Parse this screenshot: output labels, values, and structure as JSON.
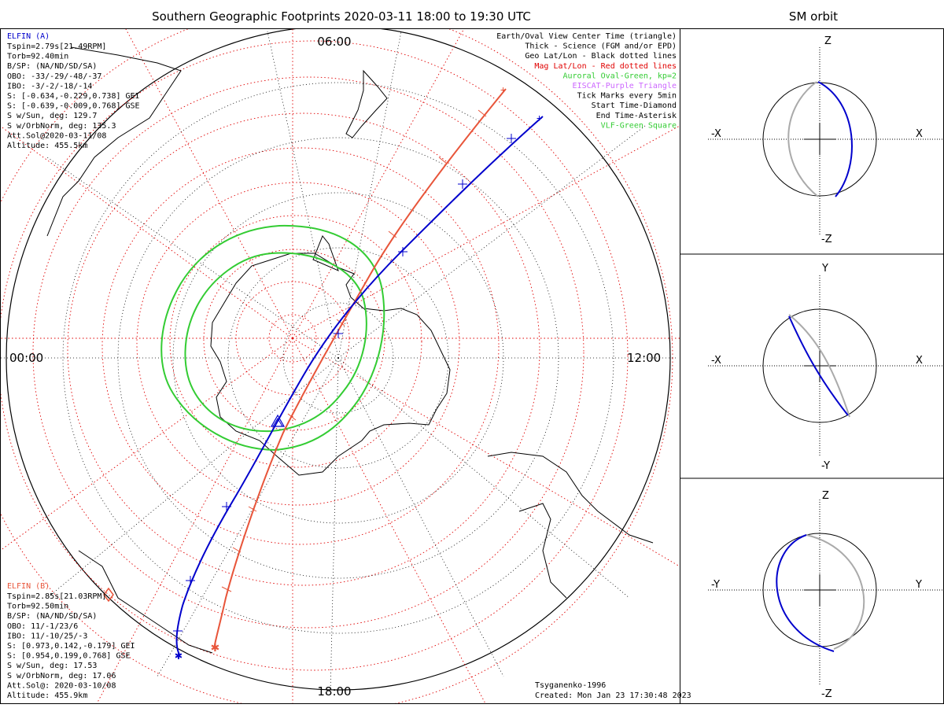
{
  "header": {
    "title": "Southern Geographic Footprints 2020-03-11 18:00 to 19:30 UTC",
    "orbit_title": "SM orbit"
  },
  "hours": {
    "top": "06:00",
    "left": "00:00",
    "right": "12:00",
    "bottom": "18:00"
  },
  "elfin_a": {
    "name": "ELFIN (A)",
    "color": "#0000cc",
    "lines": [
      "Tspin=2.79s[21.49RPM]",
      "Torb=92.40min",
      "B/SP: (NA/ND/SD/SA)",
      "OBO: -33/-29/-48/-37",
      "IBO: -3/-2/-18/-14",
      "S: [-0.634,-0.229,0.738] GEI",
      "S: [-0.639,-0.009,0.768] GSE",
      "S w/Sun, deg: 129.7",
      "S w/OrbNorm, deg: 135.3",
      "Att.Sol@2020-03-11/08",
      "Altitude: 455.5km"
    ]
  },
  "elfin_b": {
    "name": "ELFIN (B)",
    "color": "#e8553a",
    "lines": [
      "Tspin=2.85s[21.03RPM]",
      "Torb=92.50min",
      "B/SP: (NA/ND/SD/SA)",
      "OBO: 11/-1/23/6",
      "IBO: 11/-10/25/-3",
      "S: [0.973,0.142,-0.179] GEI",
      "S: [0.954,0.199,0.768] GSE",
      "S w/Sun, deg: 17.53",
      "S w/OrbNorm, deg: 17.06",
      "Att.Sol@: 2020-03-10/08",
      "Altitude: 455.9km"
    ]
  },
  "legend": [
    {
      "text": "Earth/Oval View Center Time (triangle)",
      "color": "#000000"
    },
    {
      "text": "Thick - Science (FGM and/or EPD)",
      "color": "#000000"
    },
    {
      "text": "Geo Lat/Lon - Black dotted lines",
      "color": "#000000"
    },
    {
      "text": "Mag Lat/Lon - Red dotted lines",
      "color": "#e00000"
    },
    {
      "text": "Auroral Oval-Green, kp=2",
      "color": "#33cc33"
    },
    {
      "text": "EISCAT-Purple Triangle",
      "color": "#cc66ff"
    },
    {
      "text": "Tick Marks every 5min",
      "color": "#000000"
    },
    {
      "text": "Start Time-Diamond",
      "color": "#000000"
    },
    {
      "text": "End Time-Asterisk",
      "color": "#000000"
    },
    {
      "text": "VLF-Green Square",
      "color": "#33cc33"
    }
  ],
  "credits": {
    "model": "Tsyganenko-1996",
    "created": "Created: Mon Jan 23 17:30:48 2023"
  },
  "panels": [
    {
      "top": "Z",
      "bottom": "-Z",
      "left": "-X",
      "right": "X"
    },
    {
      "top": "Y",
      "bottom": "-Y",
      "left": "-X",
      "right": "X"
    },
    {
      "top": "Z",
      "bottom": "-Z",
      "left": "-Y",
      "right": "Y"
    }
  ],
  "colors": {
    "elfin_a": "#0000cc",
    "elfin_b": "#e8553a",
    "oval": "#33cc33",
    "mag_grid": "#e00000",
    "geo_grid": "#000000"
  }
}
